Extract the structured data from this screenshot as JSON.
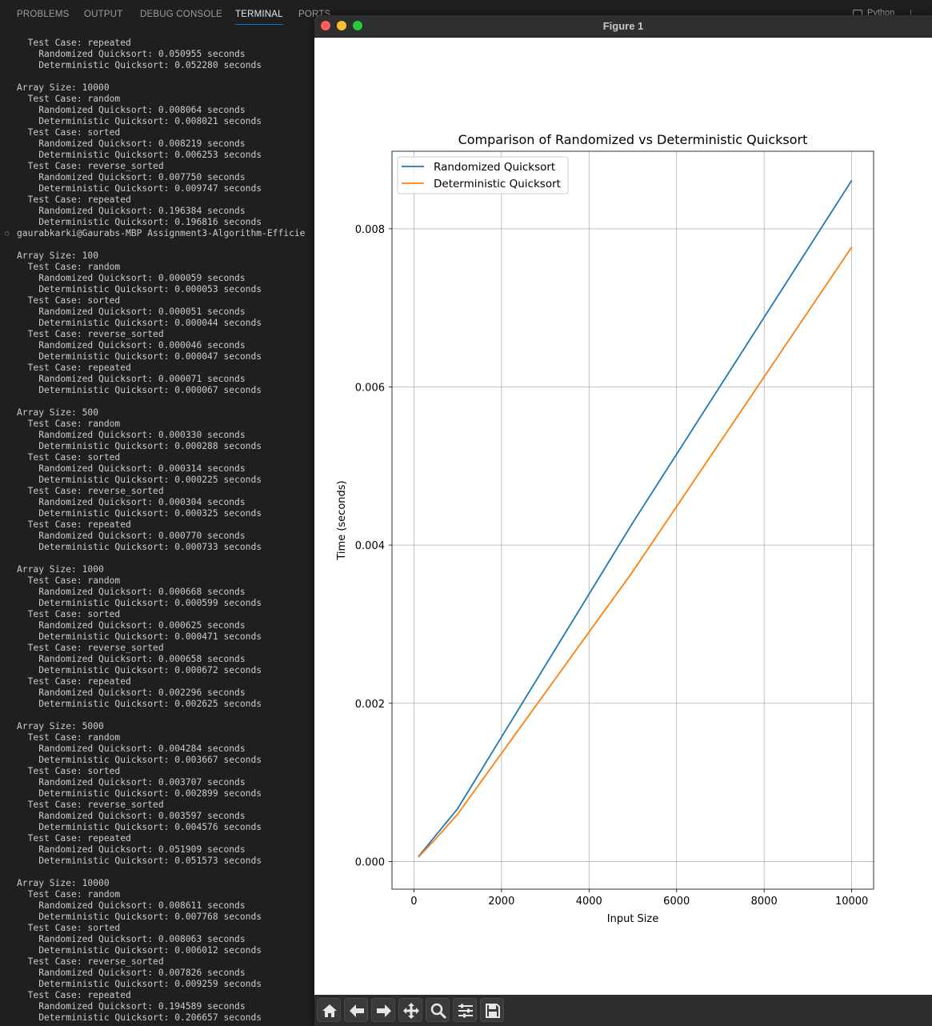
{
  "panel": {
    "tabs": [
      "PROBLEMS",
      "OUTPUT",
      "DEBUG CONSOLE",
      "TERMINAL",
      "PORTS"
    ],
    "active_tab": "TERMINAL",
    "right_label": "Python"
  },
  "terminal": {
    "lines": [
      "  Test Case: repeated",
      "    Randomized Quicksort: 0.050955 seconds",
      "    Deterministic Quicksort: 0.052280 seconds",
      "",
      "Array Size: 10000",
      "  Test Case: random",
      "    Randomized Quicksort: 0.008064 seconds",
      "    Deterministic Quicksort: 0.008021 seconds",
      "  Test Case: sorted",
      "    Randomized Quicksort: 0.008219 seconds",
      "    Deterministic Quicksort: 0.006253 seconds",
      "  Test Case: reverse_sorted",
      "    Randomized Quicksort: 0.007750 seconds",
      "    Deterministic Quicksort: 0.009747 seconds",
      "  Test Case: repeated",
      "    Randomized Quicksort: 0.196384 seconds",
      "    Deterministic Quicksort: 0.196816 seconds",
      "gaurabkarki@Gaurabs-MBP Assignment3-Algorithm-Efficie",
      "",
      "Array Size: 100",
      "  Test Case: random",
      "    Randomized Quicksort: 0.000059 seconds",
      "    Deterministic Quicksort: 0.000053 seconds",
      "  Test Case: sorted",
      "    Randomized Quicksort: 0.000051 seconds",
      "    Deterministic Quicksort: 0.000044 seconds",
      "  Test Case: reverse_sorted",
      "    Randomized Quicksort: 0.000046 seconds",
      "    Deterministic Quicksort: 0.000047 seconds",
      "  Test Case: repeated",
      "    Randomized Quicksort: 0.000071 seconds",
      "    Deterministic Quicksort: 0.000067 seconds",
      "",
      "Array Size: 500",
      "  Test Case: random",
      "    Randomized Quicksort: 0.000330 seconds",
      "    Deterministic Quicksort: 0.000288 seconds",
      "  Test Case: sorted",
      "    Randomized Quicksort: 0.000314 seconds",
      "    Deterministic Quicksort: 0.000225 seconds",
      "  Test Case: reverse_sorted",
      "    Randomized Quicksort: 0.000304 seconds",
      "    Deterministic Quicksort: 0.000325 seconds",
      "  Test Case: repeated",
      "    Randomized Quicksort: 0.000770 seconds",
      "    Deterministic Quicksort: 0.000733 seconds",
      "",
      "Array Size: 1000",
      "  Test Case: random",
      "    Randomized Quicksort: 0.000668 seconds",
      "    Deterministic Quicksort: 0.000599 seconds",
      "  Test Case: sorted",
      "    Randomized Quicksort: 0.000625 seconds",
      "    Deterministic Quicksort: 0.000471 seconds",
      "  Test Case: reverse_sorted",
      "    Randomized Quicksort: 0.000658 seconds",
      "    Deterministic Quicksort: 0.000672 seconds",
      "  Test Case: repeated",
      "    Randomized Quicksort: 0.002296 seconds",
      "    Deterministic Quicksort: 0.002625 seconds",
      "",
      "Array Size: 5000",
      "  Test Case: random",
      "    Randomized Quicksort: 0.004284 seconds",
      "    Deterministic Quicksort: 0.003667 seconds",
      "  Test Case: sorted",
      "    Randomized Quicksort: 0.003707 seconds",
      "    Deterministic Quicksort: 0.002899 seconds",
      "  Test Case: reverse_sorted",
      "    Randomized Quicksort: 0.003597 seconds",
      "    Deterministic Quicksort: 0.004576 seconds",
      "  Test Case: repeated",
      "    Randomized Quicksort: 0.051909 seconds",
      "    Deterministic Quicksort: 0.051573 seconds",
      "",
      "Array Size: 10000",
      "  Test Case: random",
      "    Randomized Quicksort: 0.008611 seconds",
      "    Deterministic Quicksort: 0.007768 seconds",
      "  Test Case: sorted",
      "    Randomized Quicksort: 0.008063 seconds",
      "    Deterministic Quicksort: 0.006012 seconds",
      "  Test Case: reverse_sorted",
      "    Randomized Quicksort: 0.007826 seconds",
      "    Deterministic Quicksort: 0.009259 seconds",
      "  Test Case: repeated",
      "    Randomized Quicksort: 0.194589 seconds",
      "    Deterministic Quicksort: 0.206657 seconds"
    ]
  },
  "figure_window": {
    "title": "Figure 1",
    "toolbar_icons": [
      "home-icon",
      "back-arrow-icon",
      "forward-arrow-icon",
      "pan-icon",
      "zoom-icon",
      "configure-subplots-icon",
      "save-icon"
    ]
  },
  "chart_data": {
    "type": "line",
    "title": "Comparison of Randomized vs Deterministic Quicksort",
    "xlabel": "Input Size",
    "ylabel": "Time (seconds)",
    "x": [
      100,
      500,
      1000,
      5000,
      10000
    ],
    "xlim": [
      -500,
      10500
    ],
    "ylim": [
      -0.00035,
      0.00898
    ],
    "xticks": [
      0,
      2000,
      4000,
      6000,
      8000,
      10000
    ],
    "xtick_labels": [
      "0",
      "2000",
      "4000",
      "6000",
      "8000",
      "10000"
    ],
    "yticks": [
      0.0,
      0.002,
      0.004,
      0.006,
      0.008
    ],
    "ytick_labels": [
      "0.000",
      "0.002",
      "0.004",
      "0.006",
      "0.008"
    ],
    "grid": true,
    "legend_position": "upper-left",
    "series": [
      {
        "name": "Randomized Quicksort",
        "color": "#1f77b4",
        "values": [
          5.9e-05,
          0.00033,
          0.000668,
          0.004284,
          0.008611
        ]
      },
      {
        "name": "Deterministic Quicksort",
        "color": "#ff7f0e",
        "values": [
          5.3e-05,
          0.000288,
          0.000599,
          0.003667,
          0.007768
        ]
      }
    ]
  }
}
